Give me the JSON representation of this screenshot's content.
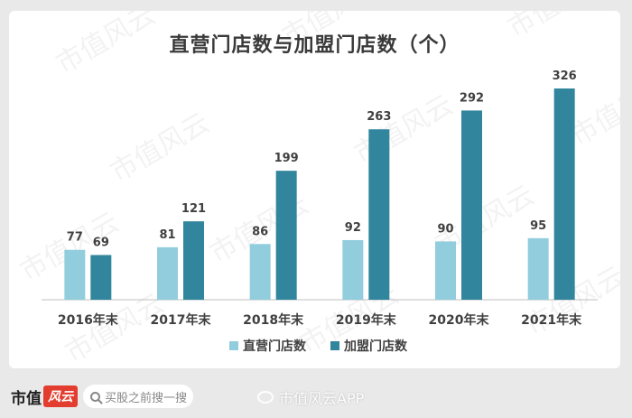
{
  "title": "直营门店数与加盟门店数（个）",
  "watermark_text": "市值风云",
  "chart_data": {
    "type": "bar",
    "categories": [
      "2016年末",
      "2017年末",
      "2018年末",
      "2019年末",
      "2020年末",
      "2021年末"
    ],
    "series": [
      {
        "name": "直营门店数",
        "color": "#92cddd",
        "values": [
          77,
          81,
          86,
          92,
          90,
          95
        ]
      },
      {
        "name": "加盟门店数",
        "color": "#31859c",
        "values": [
          69,
          121,
          199,
          263,
          292,
          326
        ]
      }
    ],
    "ylim": [
      0,
      326
    ],
    "grid": false,
    "legend_position": "bottom"
  },
  "footer": {
    "brand_text": "市值",
    "brand_mark": "风云",
    "search_placeholder": "买股之前搜一搜",
    "weibo_label": "市值风云APP"
  },
  "colors": {
    "axis": "#bfbfbf",
    "label": "#404040"
  }
}
